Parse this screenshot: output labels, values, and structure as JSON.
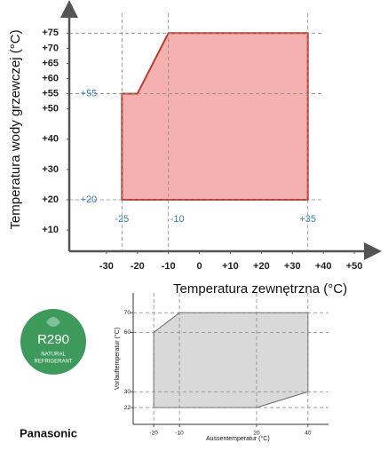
{
  "chart_data": [
    {
      "type": "area",
      "x_label": "Temperatura zewnętrzna (°C)",
      "y_label": "Temperatura wody grzewczej (°C)",
      "series": [
        {
          "color": "#f5b0b0",
          "edge_color": "#c0392b",
          "x": [
            -25,
            -25,
            -20,
            -10,
            35,
            35
          ],
          "values": [
            20,
            55,
            55,
            75,
            75,
            20
          ]
        }
      ],
      "xlim": [
        -42,
        56
      ],
      "ylim": [
        3,
        83
      ],
      "xticks": [
        -30,
        -20,
        -10,
        0,
        {
          "value": 10,
          "label": "+10"
        },
        {
          "value": 20,
          "label": "+20"
        },
        {
          "value": 30,
          "label": "+30"
        },
        {
          "value": 40,
          "label": "+40"
        },
        {
          "value": 50,
          "label": "+50"
        }
      ],
      "yticks": [
        {
          "value": 10,
          "label": "+10"
        },
        {
          "value": 20,
          "label": "+20"
        },
        {
          "value": 30,
          "label": "+30"
        },
        {
          "value": 40,
          "label": "+40"
        },
        {
          "value": 50,
          "label": "+50"
        },
        {
          "value": 55,
          "label": "+55"
        },
        {
          "value": 60,
          "label": "+60"
        },
        {
          "value": 65,
          "label": "+65"
        },
        {
          "value": 70,
          "label": "+70"
        },
        {
          "value": 75,
          "label": "+75"
        }
      ],
      "reference_lines": {
        "x": [
          -25,
          -10,
          {
            "value": 35,
            "label": "+35"
          }
        ],
        "y": [
          {
            "value": 75
          },
          {
            "value": 55,
            "label": "+55"
          },
          {
            "value": 20,
            "label": "+20"
          }
        ]
      },
      "grid": false
    },
    {
      "type": "area",
      "x_label": "Aussentemperatur (°C)",
      "y_label": "Vorlauftemperatur (°C)",
      "series": [
        {
          "color": "#d9d9d9",
          "edge_color": "#666666",
          "x": [
            -20,
            -20,
            -10,
            40,
            40,
            20
          ],
          "values": [
            22,
            60,
            70,
            70,
            30,
            22
          ]
        }
      ],
      "xlim": [
        -28,
        48
      ],
      "ylim": [
        13.5,
        80
      ],
      "xticks": [
        -20,
        -10,
        20,
        40
      ],
      "yticks": [
        22,
        30,
        60,
        70
      ],
      "grid": true
    }
  ],
  "badge": {
    "title": "R290",
    "line1": "NATURAL",
    "line2": "REFRIGERANT"
  },
  "brand": "Panasonic"
}
